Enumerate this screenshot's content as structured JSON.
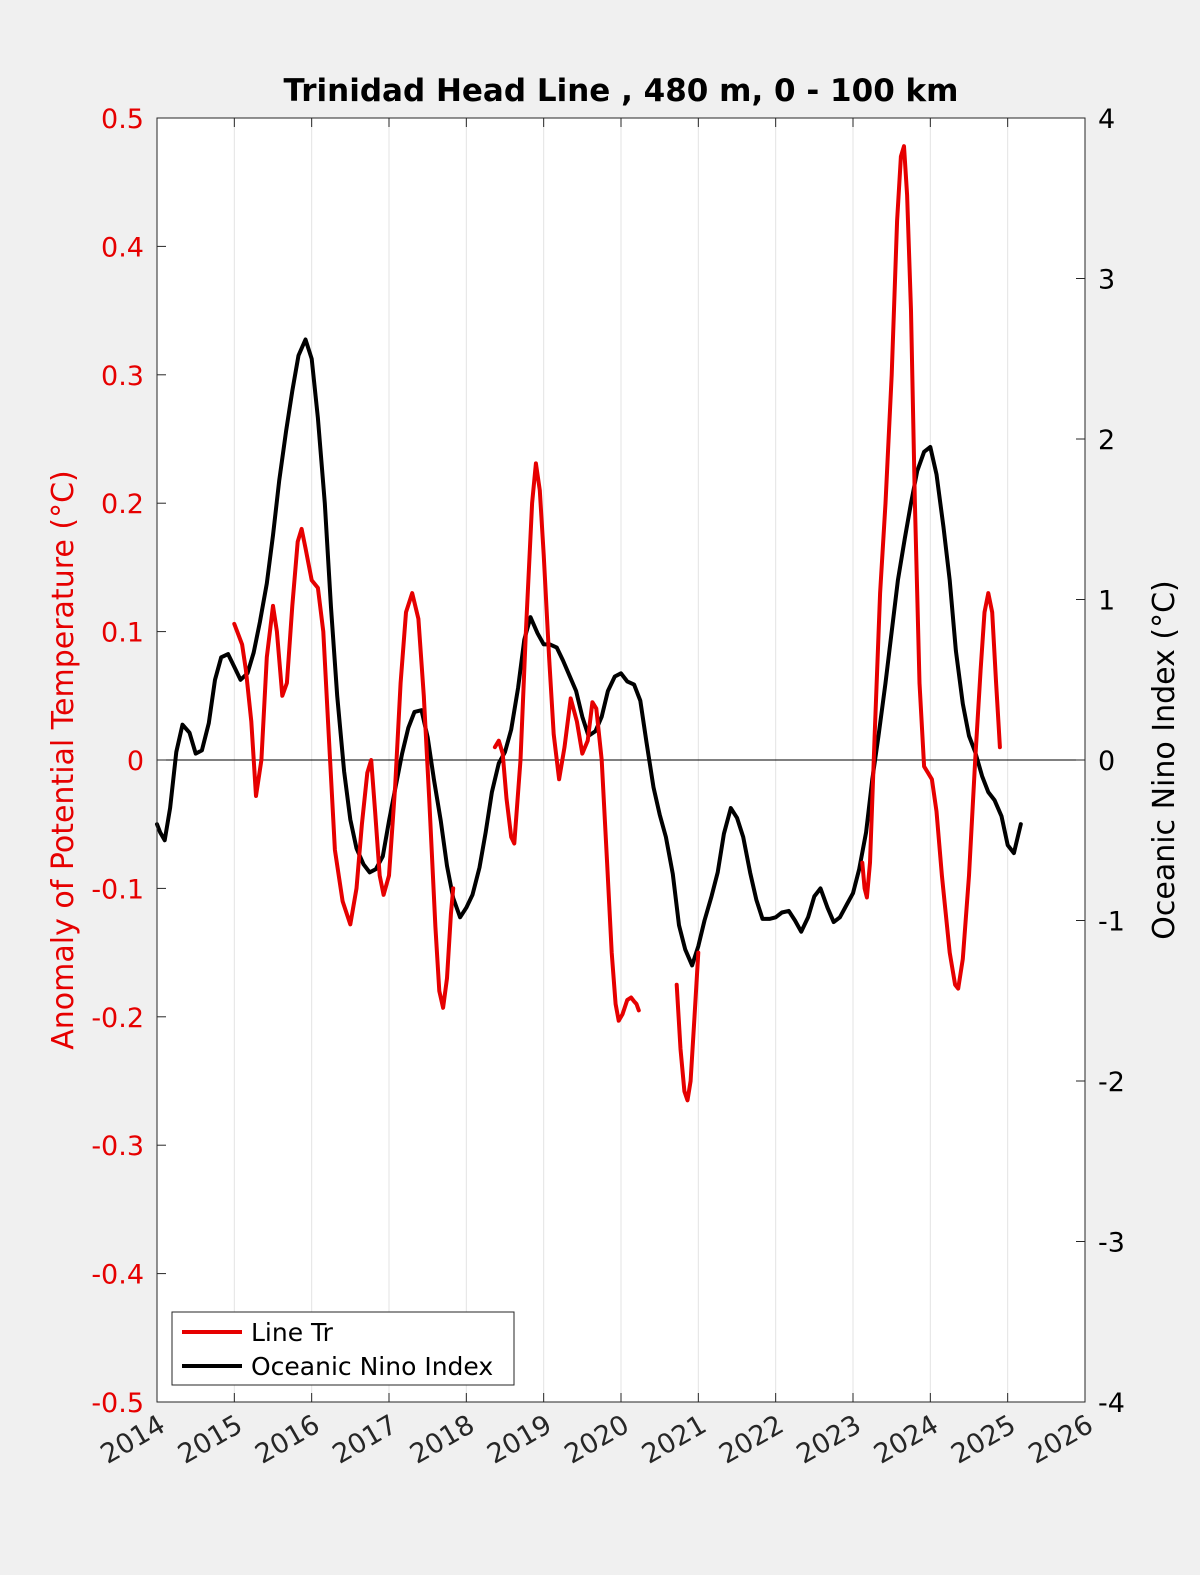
{
  "chart_data": {
    "type": "line",
    "title": "Trinidad Head Line , 480 m, 0 - 100 km",
    "ylabel": "Anomaly of Potential Temperature (°C)",
    "y2label": "Oceanic Nino Index (°C)",
    "xlim": [
      2014,
      2026
    ],
    "ylim": [
      -0.5,
      0.5
    ],
    "y2lim": [
      -4,
      4
    ],
    "x_ticks": [
      "2014",
      "2015",
      "2016",
      "2017",
      "2018",
      "2019",
      "2020",
      "2021",
      "2022",
      "2023",
      "2024",
      "2025",
      "2026"
    ],
    "y_ticks": [
      "-0.5",
      "-0.4",
      "-0.3",
      "-0.2",
      "-0.1",
      "0",
      "0.1",
      "0.2",
      "0.3",
      "0.4",
      "0.5"
    ],
    "y2_ticks": [
      "-4",
      "-3",
      "-2",
      "-1",
      "0",
      "1",
      "2",
      "3",
      "4"
    ],
    "grid": "vertical",
    "zero_line": true,
    "legend_position": "bottom-left",
    "colors": {
      "series1": "#e60000",
      "series2": "#000000",
      "left_axis": "#e60000",
      "right_axis": "#000000"
    },
    "series": [
      {
        "name": "Line Tr",
        "axis": "left",
        "segments": [
          [
            [
              2015.0,
              0.106
            ],
            [
              2015.1,
              0.09
            ],
            [
              2015.15,
              0.07
            ],
            [
              2015.22,
              0.03
            ],
            [
              2015.28,
              -0.028
            ],
            [
              2015.35,
              0.0
            ],
            [
              2015.42,
              0.08
            ],
            [
              2015.5,
              0.12
            ],
            [
              2015.55,
              0.1
            ],
            [
              2015.62,
              0.05
            ],
            [
              2015.68,
              0.06
            ],
            [
              2015.75,
              0.12
            ],
            [
              2015.82,
              0.17
            ],
            [
              2015.87,
              0.18
            ],
            [
              2015.92,
              0.165
            ],
            [
              2016.0,
              0.14
            ],
            [
              2016.08,
              0.134
            ],
            [
              2016.15,
              0.1
            ],
            [
              2016.22,
              0.02
            ],
            [
              2016.3,
              -0.07
            ],
            [
              2016.4,
              -0.11
            ],
            [
              2016.5,
              -0.128
            ],
            [
              2016.58,
              -0.1
            ],
            [
              2016.65,
              -0.05
            ],
            [
              2016.72,
              -0.01
            ],
            [
              2016.77,
              0.0
            ],
            [
              2016.82,
              -0.04
            ],
            [
              2016.88,
              -0.09
            ],
            [
              2016.93,
              -0.105
            ],
            [
              2017.0,
              -0.09
            ],
            [
              2017.08,
              -0.02
            ],
            [
              2017.15,
              0.06
            ],
            [
              2017.22,
              0.115
            ],
            [
              2017.3,
              0.13
            ],
            [
              2017.38,
              0.11
            ],
            [
              2017.45,
              0.05
            ],
            [
              2017.52,
              -0.03
            ],
            [
              2017.6,
              -0.13
            ],
            [
              2017.65,
              -0.18
            ],
            [
              2017.7,
              -0.193
            ],
            [
              2017.75,
              -0.17
            ],
            [
              2017.8,
              -0.12
            ],
            [
              2017.83,
              -0.1
            ]
          ],
          [
            [
              2018.37,
              0.01
            ],
            [
              2018.42,
              0.015
            ],
            [
              2018.47,
              0.005
            ],
            [
              2018.52,
              -0.03
            ],
            [
              2018.58,
              -0.06
            ],
            [
              2018.62,
              -0.065
            ],
            [
              2018.7,
              0.0
            ],
            [
              2018.77,
              0.1
            ],
            [
              2018.85,
              0.2
            ],
            [
              2018.9,
              0.231
            ],
            [
              2018.95,
              0.21
            ],
            [
              2019.0,
              0.16
            ],
            [
              2019.07,
              0.08
            ],
            [
              2019.13,
              0.02
            ],
            [
              2019.2,
              -0.015
            ],
            [
              2019.27,
              0.01
            ],
            [
              2019.35,
              0.048
            ],
            [
              2019.43,
              0.03
            ],
            [
              2019.5,
              0.005
            ],
            [
              2019.57,
              0.015
            ],
            [
              2019.63,
              0.045
            ],
            [
              2019.68,
              0.04
            ],
            [
              2019.75,
              0.0
            ],
            [
              2019.82,
              -0.08
            ],
            [
              2019.88,
              -0.15
            ],
            [
              2019.93,
              -0.19
            ],
            [
              2019.97,
              -0.203
            ],
            [
              2020.02,
              -0.198
            ],
            [
              2020.08,
              -0.187
            ],
            [
              2020.13,
              -0.185
            ],
            [
              2020.17,
              -0.188
            ],
            [
              2020.2,
              -0.19
            ],
            [
              2020.23,
              -0.195
            ]
          ],
          [
            [
              2020.72,
              -0.175
            ],
            [
              2020.77,
              -0.225
            ],
            [
              2020.82,
              -0.258
            ],
            [
              2020.86,
              -0.265
            ],
            [
              2020.9,
              -0.25
            ],
            [
              2020.95,
              -0.2
            ],
            [
              2021.0,
              -0.15
            ]
          ],
          [
            [
              2023.12,
              -0.08
            ],
            [
              2023.15,
              -0.1
            ],
            [
              2023.18,
              -0.107
            ],
            [
              2023.22,
              -0.08
            ],
            [
              2023.28,
              0.02
            ],
            [
              2023.35,
              0.13
            ],
            [
              2023.42,
              0.2
            ],
            [
              2023.5,
              0.3
            ],
            [
              2023.57,
              0.42
            ],
            [
              2023.62,
              0.47
            ],
            [
              2023.66,
              0.478
            ],
            [
              2023.7,
              0.44
            ],
            [
              2023.75,
              0.35
            ],
            [
              2023.8,
              0.2
            ],
            [
              2023.86,
              0.06
            ],
            [
              2023.92,
              -0.005
            ],
            [
              2023.97,
              -0.01
            ],
            [
              2024.02,
              -0.015
            ],
            [
              2024.08,
              -0.04
            ],
            [
              2024.15,
              -0.09
            ],
            [
              2024.25,
              -0.15
            ],
            [
              2024.32,
              -0.175
            ],
            [
              2024.36,
              -0.178
            ],
            [
              2024.42,
              -0.155
            ],
            [
              2024.5,
              -0.09
            ],
            [
              2024.58,
              0.0
            ],
            [
              2024.65,
              0.07
            ],
            [
              2024.7,
              0.115
            ],
            [
              2024.75,
              0.13
            ],
            [
              2024.8,
              0.115
            ],
            [
              2024.85,
              0.06
            ],
            [
              2024.88,
              0.03
            ],
            [
              2024.9,
              0.01
            ]
          ]
        ]
      },
      {
        "name": "Oceanic Nino Index",
        "axis": "right",
        "segments": [
          [
            [
              2014.0,
              -0.4
            ],
            [
              2014.04,
              -0.45
            ],
            [
              2014.1,
              -0.5
            ],
            [
              2014.17,
              -0.3
            ],
            [
              2014.25,
              0.05
            ],
            [
              2014.33,
              0.22
            ],
            [
              2014.42,
              0.17
            ],
            [
              2014.5,
              0.04
            ],
            [
              2014.58,
              0.06
            ],
            [
              2014.67,
              0.23
            ],
            [
              2014.75,
              0.5
            ],
            [
              2014.83,
              0.64
            ],
            [
              2014.92,
              0.66
            ],
            [
              2015.0,
              0.58
            ],
            [
              2015.08,
              0.5
            ],
            [
              2015.17,
              0.54
            ],
            [
              2015.25,
              0.67
            ],
            [
              2015.33,
              0.86
            ],
            [
              2015.42,
              1.1
            ],
            [
              2015.5,
              1.4
            ],
            [
              2015.58,
              1.74
            ],
            [
              2015.67,
              2.05
            ],
            [
              2015.75,
              2.3
            ],
            [
              2015.83,
              2.52
            ],
            [
              2015.92,
              2.62
            ],
            [
              2016.0,
              2.5
            ],
            [
              2016.08,
              2.13
            ],
            [
              2016.17,
              1.6
            ],
            [
              2016.25,
              0.95
            ],
            [
              2016.33,
              0.4
            ],
            [
              2016.42,
              -0.07
            ],
            [
              2016.5,
              -0.37
            ],
            [
              2016.58,
              -0.55
            ],
            [
              2016.67,
              -0.65
            ],
            [
              2016.75,
              -0.7
            ],
            [
              2016.83,
              -0.68
            ],
            [
              2016.92,
              -0.6
            ],
            [
              2017.0,
              -0.38
            ],
            [
              2017.08,
              -0.18
            ],
            [
              2017.17,
              0.04
            ],
            [
              2017.25,
              0.2
            ],
            [
              2017.33,
              0.3
            ],
            [
              2017.42,
              0.31
            ],
            [
              2017.5,
              0.14
            ],
            [
              2017.58,
              -0.12
            ],
            [
              2017.67,
              -0.38
            ],
            [
              2017.75,
              -0.66
            ],
            [
              2017.83,
              -0.86
            ],
            [
              2017.92,
              -0.98
            ],
            [
              2018.0,
              -0.92
            ],
            [
              2018.08,
              -0.84
            ],
            [
              2018.17,
              -0.67
            ],
            [
              2018.25,
              -0.45
            ],
            [
              2018.33,
              -0.2
            ],
            [
              2018.42,
              -0.02
            ],
            [
              2018.5,
              0.05
            ],
            [
              2018.58,
              0.19
            ],
            [
              2018.67,
              0.45
            ],
            [
              2018.75,
              0.75
            ],
            [
              2018.83,
              0.89
            ],
            [
              2018.92,
              0.79
            ],
            [
              2019.0,
              0.72
            ],
            [
              2019.08,
              0.72
            ],
            [
              2019.17,
              0.7
            ],
            [
              2019.25,
              0.62
            ],
            [
              2019.33,
              0.53
            ],
            [
              2019.42,
              0.43
            ],
            [
              2019.5,
              0.27
            ],
            [
              2019.58,
              0.15
            ],
            [
              2019.67,
              0.18
            ],
            [
              2019.75,
              0.27
            ],
            [
              2019.83,
              0.43
            ],
            [
              2019.92,
              0.52
            ],
            [
              2020.0,
              0.54
            ],
            [
              2020.08,
              0.49
            ],
            [
              2020.17,
              0.47
            ],
            [
              2020.25,
              0.37
            ],
            [
              2020.33,
              0.11
            ],
            [
              2020.42,
              -0.17
            ],
            [
              2020.5,
              -0.34
            ],
            [
              2020.58,
              -0.48
            ],
            [
              2020.67,
              -0.71
            ],
            [
              2020.75,
              -1.03
            ],
            [
              2020.83,
              -1.18
            ],
            [
              2020.92,
              -1.28
            ],
            [
              2021.0,
              -1.16
            ],
            [
              2021.08,
              -1.0
            ],
            [
              2021.17,
              -0.85
            ],
            [
              2021.25,
              -0.7
            ],
            [
              2021.33,
              -0.46
            ],
            [
              2021.42,
              -0.3
            ],
            [
              2021.5,
              -0.36
            ],
            [
              2021.58,
              -0.48
            ],
            [
              2021.67,
              -0.7
            ],
            [
              2021.75,
              -0.87
            ],
            [
              2021.83,
              -0.99
            ],
            [
              2021.92,
              -0.99
            ],
            [
              2022.0,
              -0.98
            ],
            [
              2022.08,
              -0.95
            ],
            [
              2022.17,
              -0.94
            ],
            [
              2022.25,
              -1.0
            ],
            [
              2022.33,
              -1.07
            ],
            [
              2022.42,
              -0.98
            ],
            [
              2022.5,
              -0.85
            ],
            [
              2022.58,
              -0.8
            ],
            [
              2022.67,
              -0.92
            ],
            [
              2022.75,
              -1.01
            ],
            [
              2022.83,
              -0.98
            ],
            [
              2022.92,
              -0.9
            ],
            [
              2023.0,
              -0.83
            ],
            [
              2023.08,
              -0.68
            ],
            [
              2023.17,
              -0.45
            ],
            [
              2023.25,
              -0.12
            ],
            [
              2023.33,
              0.15
            ],
            [
              2023.42,
              0.48
            ],
            [
              2023.5,
              0.8
            ],
            [
              2023.58,
              1.12
            ],
            [
              2023.67,
              1.38
            ],
            [
              2023.75,
              1.6
            ],
            [
              2023.83,
              1.8
            ],
            [
              2023.92,
              1.92
            ],
            [
              2024.0,
              1.95
            ],
            [
              2024.08,
              1.78
            ],
            [
              2024.17,
              1.45
            ],
            [
              2024.25,
              1.12
            ],
            [
              2024.33,
              0.68
            ],
            [
              2024.42,
              0.35
            ],
            [
              2024.5,
              0.15
            ],
            [
              2024.58,
              0.05
            ],
            [
              2024.67,
              -0.1
            ],
            [
              2024.75,
              -0.2
            ],
            [
              2024.83,
              -0.25
            ],
            [
              2024.92,
              -0.35
            ],
            [
              2025.0,
              -0.53
            ],
            [
              2025.08,
              -0.58
            ],
            [
              2025.17,
              -0.4
            ]
          ]
        ]
      }
    ]
  }
}
